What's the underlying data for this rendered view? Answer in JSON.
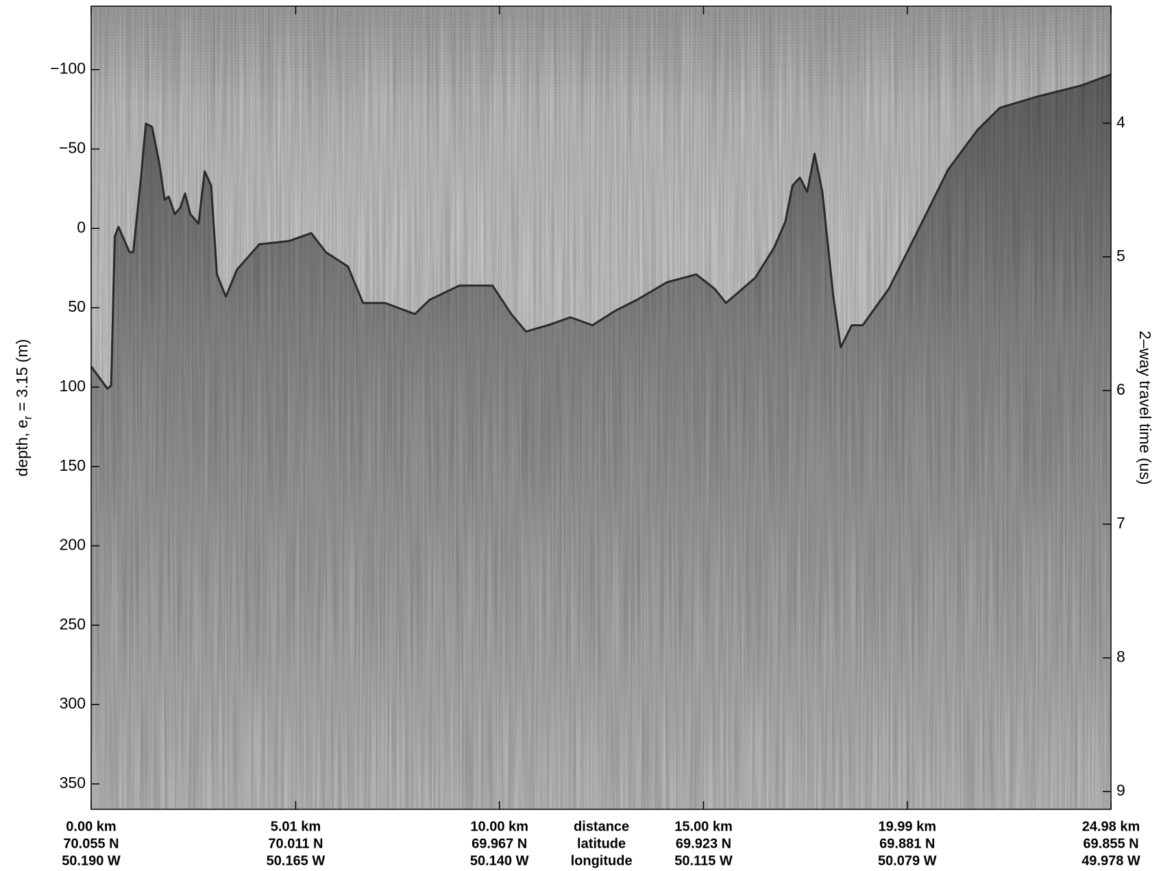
{
  "chart_data": {
    "type": "echogram",
    "y_label": "depth, e",
    "y_label_sub": "r",
    "y_label_end": " = 3.15 (m)",
    "y2_label": "2–way travel time (us)",
    "x": [
      0,
      0.4,
      0.49,
      0.58,
      0.67,
      0.94,
      1.03,
      1.22,
      1.34,
      1.49,
      1.67,
      1.8,
      1.9,
      2.05,
      2.18,
      2.3,
      2.43,
      2.63,
      2.78,
      2.94,
      3.08,
      3.3,
      3.57,
      4.12,
      4.84,
      5.39,
      5.75,
      6.29,
      6.66,
      7.2,
      7.93,
      8.29,
      9.02,
      9.83,
      10.29,
      10.65,
      11.19,
      11.74,
      12.28,
      12.83,
      13.37,
      14.1,
      14.82,
      15.27,
      15.55,
      16.27,
      16.73,
      17.0,
      17.18,
      17.36,
      17.54,
      17.72,
      17.91,
      18.18,
      18.36,
      18.63,
      18.9,
      19.54,
      20.26,
      20.99,
      21.71,
      22.26,
      23.17,
      24.25,
      24.98
    ],
    "values": [
      87,
      101,
      99,
      5,
      -1,
      15,
      15,
      -32,
      -66,
      -64,
      -41,
      -18,
      -20,
      -9,
      -13,
      -22,
      -9,
      -3,
      -36,
      -27,
      29,
      43,
      26,
      10,
      8,
      3,
      15,
      24,
      47,
      47,
      54,
      45,
      36,
      36,
      54,
      65,
      61,
      56,
      61,
      52,
      45,
      34,
      29,
      38,
      47,
      31,
      12,
      -4,
      -27,
      -32,
      -23,
      -47,
      -23,
      43,
      75,
      61,
      61,
      38,
      1,
      -37,
      -62,
      -76,
      -83,
      -90,
      -97
    ],
    "color": "#2a2a2a",
    "xlim": [
      0,
      24.98
    ],
    "xticks": [
      {
        "value": 0,
        "label": "0.00 km"
      },
      {
        "value": 5.01,
        "label": "5.01 km"
      },
      {
        "value": 10,
        "label": "10.00 km"
      },
      {
        "value": 15,
        "label": "15.00 km"
      },
      {
        "value": 19.99,
        "label": "19.99 km"
      },
      {
        "value": 24.98,
        "label": "24.98 km"
      }
    ],
    "x_tick_latitudes": [
      "70.055 N",
      "70.011 N",
      "69.967 N",
      "69.923 N",
      "69.881 N",
      "69.855 N"
    ],
    "x_tick_longitudes": [
      "50.190 W",
      "50.165 W",
      "50.140 W",
      "50.115 W",
      "50.079 W",
      "49.978 W"
    ],
    "x_row_labels": [
      "distance",
      "latitude",
      "longitude"
    ],
    "ylim": [
      -140,
      366
    ],
    "yticks": [
      {
        "value": -100,
        "label": "−100"
      },
      {
        "value": -50,
        "label": "−50"
      },
      0,
      50,
      100,
      150,
      200,
      250,
      300,
      350
    ],
    "y_inverted": true,
    "y2lim": [
      3.125,
      9.133
    ],
    "y2ticks": [
      4,
      5,
      6,
      7,
      8,
      9
    ],
    "grid": false
  }
}
